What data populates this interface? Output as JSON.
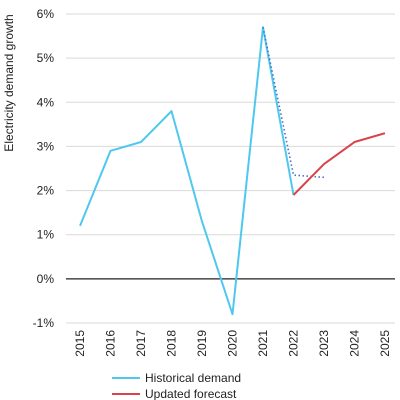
{
  "chart_data": {
    "type": "line",
    "ylabel": "Electricity demand growth",
    "ylim": [
      -1,
      6
    ],
    "yticks": [
      -1,
      0,
      1,
      2,
      3,
      4,
      5,
      6
    ],
    "ytick_labels": [
      "-1%",
      "0%",
      "1%",
      "2%",
      "3%",
      "4%",
      "5%",
      "6%"
    ],
    "categories": [
      "2015",
      "2016",
      "2017",
      "2018",
      "2019",
      "2020",
      "2021",
      "2022",
      "2023",
      "2024",
      "2025"
    ],
    "grid": "horizontal",
    "zero_line": true,
    "legend_position": "bottom",
    "series": [
      {
        "name": "Historical demand",
        "color": "#4fc8ee",
        "style": "solid",
        "x": [
          "2015",
          "2016",
          "2017",
          "2018",
          "2019",
          "2020",
          "2021",
          "2022"
        ],
        "values": [
          1.2,
          2.9,
          3.1,
          3.8,
          1.3,
          -0.8,
          5.7,
          1.9
        ]
      },
      {
        "color": "#4a6fc7",
        "style": "dotted",
        "x": [
          "2021",
          "2022",
          "2023"
        ],
        "values": [
          5.7,
          2.35,
          2.3
        ]
      },
      {
        "name": "Updated forecast",
        "color": "#d9434a",
        "style": "solid",
        "x": [
          "2022",
          "2023",
          "2024",
          "2025"
        ],
        "values": [
          1.9,
          2.6,
          3.1,
          3.3
        ]
      }
    ]
  }
}
